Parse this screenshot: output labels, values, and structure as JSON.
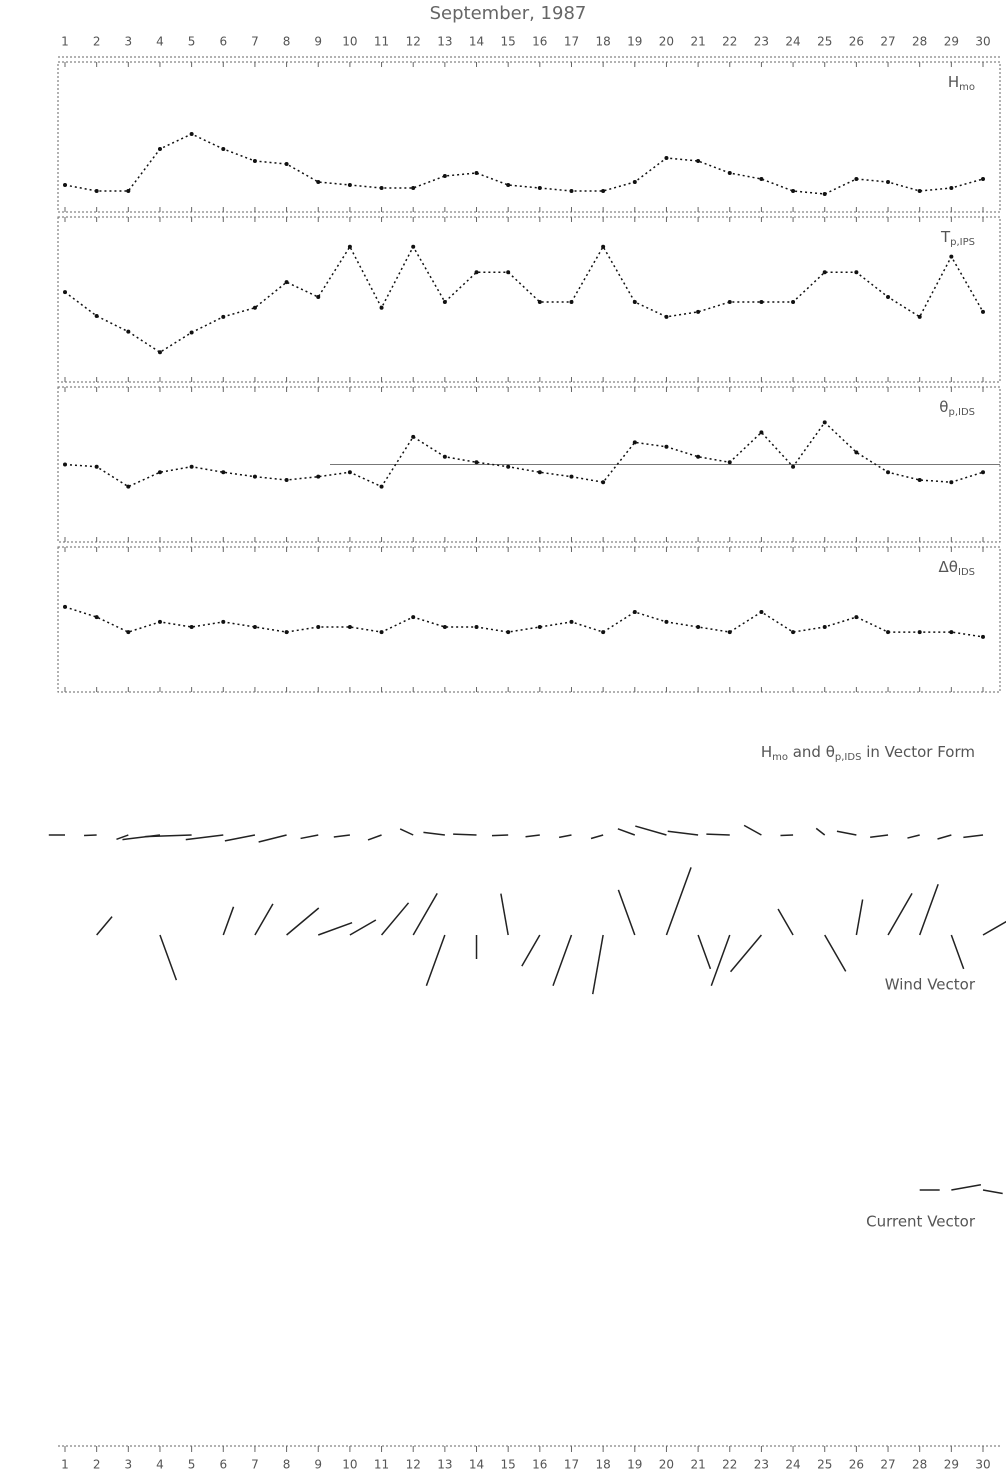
{
  "chart_data": [
    {
      "type": "line",
      "title": "September, 1987",
      "label": {
        "main": "H",
        "sub": "mo"
      },
      "x": [
        1,
        2,
        3,
        4,
        5,
        6,
        7,
        8,
        9,
        10,
        11,
        12,
        13,
        14,
        15,
        16,
        17,
        18,
        19,
        20,
        21,
        22,
        23,
        24,
        25,
        26,
        27,
        28,
        29,
        30
      ],
      "xlim": [
        1,
        30
      ],
      "xticks": [
        1,
        2,
        3,
        4,
        5,
        6,
        7,
        8,
        9,
        10,
        11,
        12,
        13,
        14,
        15,
        16,
        17,
        18,
        19,
        20,
        21,
        22,
        23,
        24,
        25,
        26,
        27,
        28,
        29,
        30
      ],
      "ylim": [
        0,
        5
      ],
      "color": "#111",
      "values": [
        0.9,
        0.7,
        0.7,
        2.1,
        2.6,
        2.1,
        1.7,
        1.6,
        1.0,
        0.9,
        0.8,
        0.8,
        1.2,
        1.3,
        0.9,
        0.8,
        0.7,
        0.7,
        1.0,
        1.8,
        1.7,
        1.3,
        1.1,
        0.7,
        0.6,
        1.1,
        1.0,
        0.7,
        0.8,
        1.1
      ]
    },
    {
      "type": "line",
      "label": {
        "main": "T",
        "sub": "p,IPS"
      },
      "x": [
        1,
        2,
        3,
        4,
        5,
        6,
        7,
        8,
        9,
        10,
        11,
        12,
        13,
        14,
        15,
        16,
        17,
        18,
        19,
        20,
        21,
        22,
        23,
        24,
        25,
        26,
        27,
        28,
        29,
        30
      ],
      "xlim": [
        1,
        30
      ],
      "xticks": [
        1,
        2,
        3,
        4,
        5,
        6,
        7,
        8,
        9,
        10,
        11,
        12,
        13,
        14,
        15,
        16,
        17,
        18,
        19,
        20,
        21,
        22,
        23,
        24,
        25,
        26,
        27,
        28,
        29,
        30
      ],
      "ylim": [
        0,
        20
      ],
      "color": "#111",
      "values": [
        10.9,
        8,
        6.1,
        3.6,
        6,
        7.9,
        9,
        12.1,
        10.3,
        16.4,
        9,
        16.4,
        9.7,
        13.3,
        13.3,
        9.7,
        9.7,
        16.4,
        9.7,
        7.9,
        8.5,
        9.7,
        9.7,
        9.7,
        13.3,
        13.3,
        10.3,
        7.9,
        15.2,
        8.5
      ]
    },
    {
      "type": "line",
      "label": {
        "main": "θ",
        "sub": "p,IDS"
      },
      "x": [
        1,
        2,
        3,
        4,
        5,
        6,
        7,
        8,
        9,
        10,
        11,
        12,
        13,
        14,
        15,
        16,
        17,
        18,
        19,
        20,
        21,
        22,
        23,
        24,
        25,
        26,
        27,
        28,
        29,
        30
      ],
      "xlim": [
        1,
        30
      ],
      "xticks": [
        1,
        2,
        3,
        4,
        5,
        6,
        7,
        8,
        9,
        10,
        11,
        12,
        13,
        14,
        15,
        16,
        17,
        18,
        19,
        20,
        21,
        22,
        23,
        24,
        25,
        26,
        27,
        28,
        29,
        30
      ],
      "ylim": [
        200,
        340
      ],
      "reference": 270,
      "color": "#111",
      "values": [
        270,
        268,
        250,
        263,
        268,
        263,
        259,
        256,
        259,
        263,
        250,
        295,
        277,
        272,
        268,
        263,
        259,
        254,
        290,
        286,
        277,
        272,
        299,
        268,
        308,
        281,
        263,
        256,
        254,
        263
      ]
    },
    {
      "type": "line",
      "label": {
        "main": "Δθ",
        "sub": "IDS"
      },
      "x": [
        1,
        2,
        3,
        4,
        5,
        6,
        7,
        8,
        9,
        10,
        11,
        12,
        13,
        14,
        15,
        16,
        17,
        18,
        19,
        20,
        21,
        22,
        23,
        24,
        25,
        26,
        27,
        28,
        29,
        30
      ],
      "xlim": [
        1,
        30
      ],
      "xticks": [
        1,
        2,
        3,
        4,
        5,
        6,
        7,
        8,
        9,
        10,
        11,
        12,
        13,
        14,
        15,
        16,
        17,
        18,
        19,
        20,
        21,
        22,
        23,
        24,
        25,
        26,
        27,
        28,
        29,
        30
      ],
      "ylim": [
        0,
        60
      ],
      "color": "#111",
      "values": [
        35.2,
        31,
        24.8,
        29,
        26.9,
        29,
        26.9,
        24.8,
        26.9,
        26.9,
        24.8,
        31,
        26.9,
        26.9,
        24.8,
        26.9,
        29,
        24.8,
        33.1,
        29,
        26.9,
        24.8,
        33.1,
        24.8,
        26.9,
        31,
        24.8,
        24.8,
        24.8,
        22.8
      ]
    },
    {
      "type": "vector",
      "title_parts": [
        {
          "text": "H"
        },
        {
          "text": "mo",
          "sub": true
        },
        {
          "text": " and "
        },
        {
          "text": "θ"
        },
        {
          "text": "p,IDS",
          "sub": true
        },
        {
          "text": " in Vector Form"
        }
      ],
      "color": "#222"
    },
    {
      "type": "vector",
      "title": "Wind Vector",
      "x": [
        1,
        2,
        3,
        4,
        5,
        6,
        7,
        8,
        9,
        10,
        11,
        12,
        13,
        14,
        15,
        16,
        17,
        18,
        19,
        20,
        21,
        22,
        23,
        24,
        25,
        26,
        27,
        28,
        29,
        30
      ],
      "xlim": [
        1,
        30
      ],
      "color": "#222",
      "speed": [
        null,
        4,
        null,
        8,
        null,
        5,
        6,
        7,
        6,
        5,
        7,
        8,
        9,
        4,
        7,
        6,
        9,
        10,
        8,
        12,
        6,
        9,
        8,
        5,
        7,
        6,
        8,
        9,
        6,
        7
      ],
      "direction": [
        null,
        40,
        null,
        160,
        null,
        20,
        30,
        50,
        70,
        60,
        40,
        30,
        200,
        180,
        350,
        210,
        200,
        190,
        340,
        20,
        160,
        200,
        220,
        330,
        150,
        10,
        30,
        20,
        160,
        60
      ]
    },
    {
      "type": "vector",
      "title": "Current Vector",
      "x": [
        1,
        2,
        3,
        4,
        5,
        6,
        7,
        8,
        9,
        10,
        11,
        12,
        13,
        14,
        15,
        16,
        17,
        18,
        19,
        20,
        21,
        22,
        23,
        24,
        25,
        26,
        27,
        28,
        29,
        30
      ],
      "xlim": [
        1,
        30
      ],
      "xticks": [
        1,
        2,
        3,
        4,
        5,
        6,
        7,
        8,
        9,
        10,
        11,
        12,
        13,
        14,
        15,
        16,
        17,
        18,
        19,
        20,
        21,
        22,
        23,
        24,
        25,
        26,
        27,
        28,
        29,
        30
      ],
      "color": "#222",
      "speed": [
        null,
        null,
        null,
        null,
        null,
        null,
        null,
        null,
        null,
        null,
        null,
        null,
        null,
        null,
        null,
        null,
        null,
        null,
        null,
        null,
        null,
        null,
        null,
        null,
        null,
        null,
        null,
        0.2,
        0.3,
        0.2
      ],
      "direction": [
        null,
        null,
        null,
        null,
        null,
        null,
        null,
        null,
        null,
        null,
        null,
        null,
        null,
        null,
        null,
        null,
        null,
        null,
        null,
        null,
        null,
        null,
        null,
        null,
        null,
        null,
        null,
        90,
        80,
        100
      ]
    }
  ]
}
